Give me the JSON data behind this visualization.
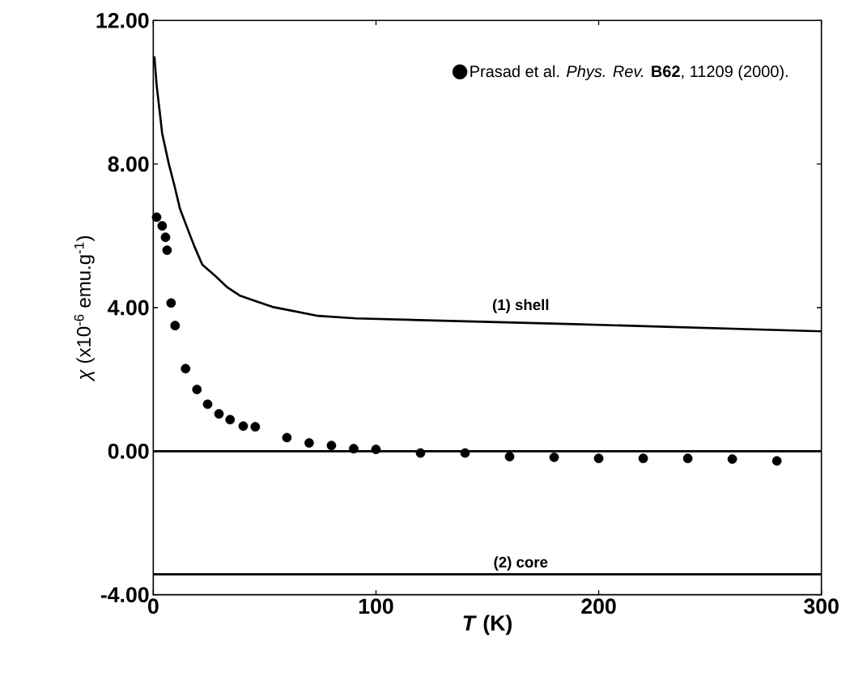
{
  "chart_data": {
    "type": "scatter",
    "xlabel": "*T* (K)",
    "ylabel": "*χ* (x10$^{-6}$ emu.g$^{-1}$)",
    "xlim": [
      0,
      300
    ],
    "ylim": [
      -4,
      12
    ],
    "xticks": [
      0,
      100,
      200,
      300
    ],
    "yticks": [
      {
        "value": -4,
        "label": "-4.00"
      },
      {
        "value": 0,
        "label": "0.00"
      },
      {
        "value": 4,
        "label": "4.00"
      },
      {
        "value": 8,
        "label": "8.00"
      },
      {
        "value": 12,
        "label": "12.00"
      }
    ],
    "series": [
      {
        "name": "Prasad et al. *Phys. Rev.* **B62**, 11209 (2000).",
        "marker": "circle",
        "color": "#000000",
        "x": [
          1.5,
          4,
          5.5,
          6.2,
          8,
          9.8,
          14.5,
          19.6,
          24.4,
          29.5,
          34.5,
          40.4,
          45.8,
          60,
          70,
          80,
          90,
          100,
          120,
          140,
          160,
          180,
          200,
          220,
          240,
          260,
          280
        ],
        "values": [
          6.52,
          6.28,
          5.96,
          5.6,
          4.13,
          3.5,
          2.3,
          1.72,
          1.31,
          1.04,
          0.88,
          0.7,
          0.68,
          0.38,
          0.23,
          0.16,
          0.07,
          0.05,
          -0.05,
          -0.05,
          -0.15,
          -0.17,
          -0.2,
          -0.2,
          -0.2,
          -0.22,
          -0.27
        ]
      },
      {
        "name": "(1) shell",
        "type": "line",
        "color": "#000000",
        "x": [
          0.5,
          1.5,
          3,
          4,
          7,
          9.5,
          12,
          16,
          18.5,
          22,
          27.5,
          33,
          39,
          46,
          53.5,
          61,
          74,
          91,
          189,
          300
        ],
        "values": [
          11.0,
          10.2,
          9.4,
          8.85,
          8.0,
          7.4,
          6.75,
          6.1,
          5.7,
          5.2,
          4.9,
          4.58,
          4.33,
          4.18,
          4.02,
          3.93,
          3.77,
          3.7,
          3.54,
          3.34
        ]
      }
    ],
    "ref_lines": [
      {
        "axis": "y",
        "value": 0,
        "color": "#000000"
      },
      {
        "axis": "y",
        "value": -3.43,
        "label": "(2) core",
        "color": "#000000"
      }
    ],
    "legend": "top right",
    "line_style": "solid",
    "grid": false
  }
}
